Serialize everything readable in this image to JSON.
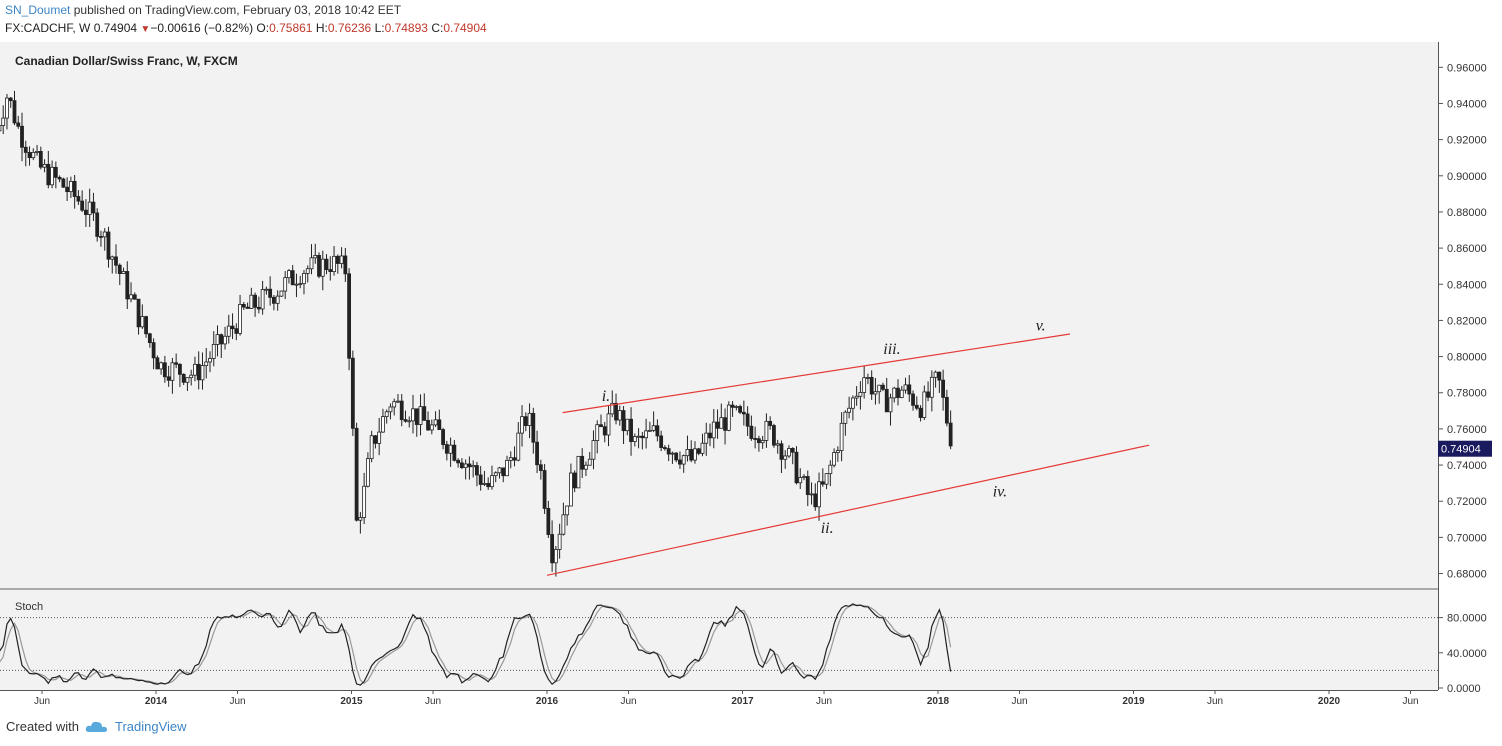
{
  "header": {
    "user": "SN_Doumet",
    "published": "published on TradingView.com, February 03, 2018 10:42 EET",
    "symbol": "FX:CADCHF, W",
    "last": "0.74904",
    "change": "−0.00616 (−0.82%)",
    "open_label": "O:",
    "open": "0.75861",
    "high_label": "H:",
    "high": "0.76236",
    "low_label": "L:",
    "low": "0.74893",
    "close_label": "C:",
    "close": "0.74904"
  },
  "footer": {
    "created_with": "Created with",
    "brand": "TradingView"
  },
  "chart_data": {
    "type": "candlestick",
    "title": "Canadian Dollar/Swiss Franc, W, FXCM",
    "price_ticks": [
      "0.96000",
      "0.94000",
      "0.92000",
      "0.90000",
      "0.88000",
      "0.86000",
      "0.84000",
      "0.82000",
      "0.80000",
      "0.78000",
      "0.76000",
      "0.74000",
      "0.72000",
      "0.70000",
      "0.68000"
    ],
    "ylim": [
      0.672,
      0.974
    ],
    "last_price_label": "0.74904",
    "time_ticks": [
      {
        "t": 2013.417,
        "label": "Jun",
        "bold": false
      },
      {
        "t": 2014.0,
        "label": "2014",
        "bold": true
      },
      {
        "t": 2014.417,
        "label": "Jun",
        "bold": false
      },
      {
        "t": 2015.0,
        "label": "2015",
        "bold": true
      },
      {
        "t": 2015.417,
        "label": "Jun",
        "bold": false
      },
      {
        "t": 2016.0,
        "label": "2016",
        "bold": true
      },
      {
        "t": 2016.417,
        "label": "Jun",
        "bold": false
      },
      {
        "t": 2017.0,
        "label": "2017",
        "bold": true
      },
      {
        "t": 2017.417,
        "label": "Jun",
        "bold": false
      },
      {
        "t": 2018.0,
        "label": "2018",
        "bold": true
      },
      {
        "t": 2018.417,
        "label": "Jun",
        "bold": false
      },
      {
        "t": 2019.0,
        "label": "2019",
        "bold": true
      },
      {
        "t": 2019.417,
        "label": "Jun",
        "bold": false
      },
      {
        "t": 2020.0,
        "label": "2020",
        "bold": true
      },
      {
        "t": 2020.417,
        "label": "Jun",
        "bold": false
      }
    ],
    "price_anchors": [
      [
        2013.18,
        0.925
      ],
      [
        2013.24,
        0.945
      ],
      [
        2013.3,
        0.925
      ],
      [
        2013.4,
        0.905
      ],
      [
        2013.52,
        0.895
      ],
      [
        2013.62,
        0.885
      ],
      [
        2013.72,
        0.87
      ],
      [
        2013.82,
        0.845
      ],
      [
        2013.92,
        0.82
      ],
      [
        2014.02,
        0.795
      ],
      [
        2014.2,
        0.79
      ],
      [
        2014.35,
        0.81
      ],
      [
        2014.45,
        0.825
      ],
      [
        2014.6,
        0.835
      ],
      [
        2014.75,
        0.848
      ],
      [
        2014.9,
        0.852
      ],
      [
        2014.97,
        0.848
      ],
      [
        2015.03,
        0.7
      ],
      [
        2015.1,
        0.75
      ],
      [
        2015.2,
        0.775
      ],
      [
        2015.3,
        0.77
      ],
      [
        2015.45,
        0.757
      ],
      [
        2015.6,
        0.74
      ],
      [
        2015.7,
        0.728
      ],
      [
        2015.8,
        0.74
      ],
      [
        2015.9,
        0.768
      ],
      [
        2015.97,
        0.735
      ],
      [
        2016.03,
        0.69
      ],
      [
        2016.12,
        0.73
      ],
      [
        2016.25,
        0.755
      ],
      [
        2016.35,
        0.77
      ],
      [
        2016.45,
        0.752
      ],
      [
        2016.55,
        0.758
      ],
      [
        2016.65,
        0.748
      ],
      [
        2016.75,
        0.742
      ],
      [
        2016.85,
        0.76
      ],
      [
        2016.95,
        0.768
      ],
      [
        2017.05,
        0.76
      ],
      [
        2017.15,
        0.758
      ],
      [
        2017.25,
        0.742
      ],
      [
        2017.35,
        0.72
      ],
      [
        2017.42,
        0.728
      ],
      [
        2017.52,
        0.765
      ],
      [
        2017.62,
        0.79
      ],
      [
        2017.72,
        0.775
      ],
      [
        2017.82,
        0.782
      ],
      [
        2017.92,
        0.772
      ],
      [
        2018.0,
        0.788
      ],
      [
        2018.06,
        0.758
      ],
      [
        2018.08,
        0.75
      ]
    ],
    "wave_lines": [
      {
        "from": [
          2016.08,
          0.769
        ],
        "to": [
          2018.675,
          0.8125
        ]
      },
      {
        "from": [
          2016.0,
          0.679
        ],
        "to": [
          2019.08,
          0.751
        ]
      }
    ],
    "wave_labels": [
      {
        "text": "i.",
        "t": 2016.28,
        "p": 0.7755
      },
      {
        "text": "ii.",
        "t": 2017.4,
        "p": 0.7025
      },
      {
        "text": "iii.",
        "t": 2017.72,
        "p": 0.8015
      },
      {
        "text": "iv.",
        "t": 2018.28,
        "p": 0.7225
      },
      {
        "text": "v.",
        "t": 2018.5,
        "p": 0.8145
      }
    ],
    "stoch": {
      "label": "Stoch",
      "ticks": [
        "80.0000",
        "40.0000",
        "0.0000"
      ],
      "ylim": [
        0,
        100
      ],
      "upper": 80,
      "lower": 20
    }
  }
}
